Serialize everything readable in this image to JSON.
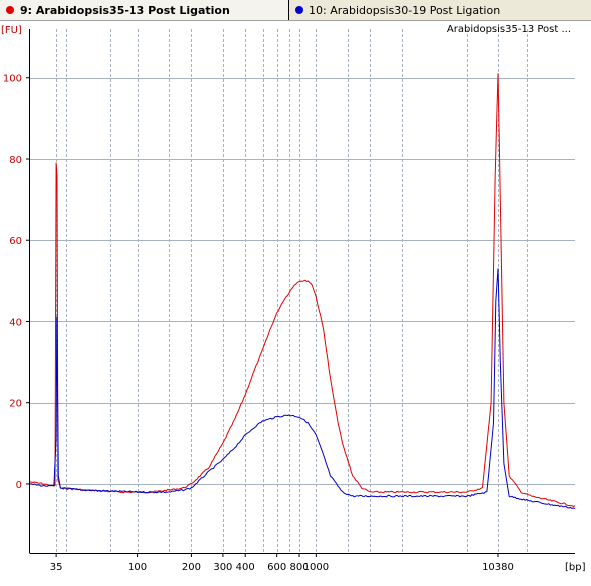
{
  "tabs": [
    {
      "label": "9: Arabidopsis35-13 Post Ligation",
      "color": "#e00000",
      "active": true
    },
    {
      "label": "10: Arabidopsis30-19 Post Ligation",
      "color": "#0000d0",
      "active": false
    }
  ],
  "chart_data": {
    "type": "line",
    "title": "Arabidopsis35-13 Post ...",
    "xlabel": "[bp]",
    "ylabel": "[FU]",
    "x_scale": "log",
    "xlim": [
      25,
      28000
    ],
    "ylim": [
      -17,
      112
    ],
    "grid": true,
    "y_ticks": [
      0,
      20,
      40,
      60,
      80,
      100
    ],
    "x_tick_labels": [
      "35",
      "100",
      "200",
      "300",
      "400",
      "600",
      "800",
      "1000",
      "10380"
    ],
    "x_gridlines": [
      35,
      40,
      70,
      100,
      150,
      200,
      300,
      400,
      500,
      600,
      700,
      800,
      1000,
      1500,
      2000,
      3000,
      7000,
      10380,
      15000
    ],
    "series": [
      {
        "name": "9: Arabidopsis35-13 Post Ligation",
        "color": "#e00000",
        "points": [
          [
            25,
            0.5
          ],
          [
            30,
            0
          ],
          [
            33,
            -0.5
          ],
          [
            34.5,
            -0.5
          ],
          [
            35,
            79
          ],
          [
            35.4,
            76
          ],
          [
            35.8,
            1
          ],
          [
            37,
            -1
          ],
          [
            50,
            -1.5
          ],
          [
            80,
            -2
          ],
          [
            120,
            -2
          ],
          [
            150,
            -1.5
          ],
          [
            180,
            -1
          ],
          [
            200,
            0
          ],
          [
            250,
            4
          ],
          [
            300,
            10
          ],
          [
            350,
            16
          ],
          [
            400,
            22
          ],
          [
            450,
            28
          ],
          [
            500,
            33
          ],
          [
            550,
            38
          ],
          [
            600,
            42
          ],
          [
            650,
            45
          ],
          [
            700,
            47
          ],
          [
            750,
            49
          ],
          [
            800,
            50
          ],
          [
            850,
            50
          ],
          [
            900,
            50
          ],
          [
            950,
            49
          ],
          [
            1000,
            46
          ],
          [
            1100,
            38
          ],
          [
            1200,
            26
          ],
          [
            1300,
            17
          ],
          [
            1400,
            10
          ],
          [
            1600,
            2
          ],
          [
            1800,
            -1
          ],
          [
            2000,
            -2
          ],
          [
            3000,
            -2
          ],
          [
            5000,
            -2
          ],
          [
            7000,
            -2
          ],
          [
            8500,
            -1
          ],
          [
            9500,
            20
          ],
          [
            10000,
            75
          ],
          [
            10380,
            101
          ],
          [
            10700,
            70
          ],
          [
            11200,
            20
          ],
          [
            12000,
            2
          ],
          [
            14000,
            -2
          ],
          [
            16000,
            -3
          ],
          [
            20000,
            -4
          ],
          [
            25000,
            -5
          ],
          [
            28000,
            -5.5
          ]
        ]
      },
      {
        "name": "10: Arabidopsis30-19 Post Ligation",
        "color": "#0000c8",
        "points": [
          [
            25,
            0
          ],
          [
            30,
            -0.5
          ],
          [
            34,
            -0.5
          ],
          [
            35,
            11
          ],
          [
            35.3,
            41
          ],
          [
            35.6,
            27
          ],
          [
            36,
            2
          ],
          [
            37,
            -1
          ],
          [
            50,
            -1.5
          ],
          [
            100,
            -2
          ],
          [
            150,
            -2
          ],
          [
            180,
            -1.5
          ],
          [
            200,
            -1
          ],
          [
            250,
            3
          ],
          [
            300,
            6
          ],
          [
            350,
            9
          ],
          [
            400,
            12
          ],
          [
            450,
            14
          ],
          [
            500,
            15.5
          ],
          [
            600,
            16.5
          ],
          [
            700,
            17
          ],
          [
            800,
            16.5
          ],
          [
            900,
            15
          ],
          [
            1000,
            12
          ],
          [
            1100,
            7
          ],
          [
            1200,
            2
          ],
          [
            1400,
            -2
          ],
          [
            1600,
            -3
          ],
          [
            2000,
            -3
          ],
          [
            3000,
            -3
          ],
          [
            7000,
            -3
          ],
          [
            9000,
            -2
          ],
          [
            9800,
            15
          ],
          [
            10100,
            45
          ],
          [
            10380,
            53
          ],
          [
            10700,
            30
          ],
          [
            11200,
            5
          ],
          [
            12000,
            -3
          ],
          [
            15000,
            -4
          ],
          [
            20000,
            -5
          ],
          [
            28000,
            -6
          ]
        ]
      }
    ]
  }
}
